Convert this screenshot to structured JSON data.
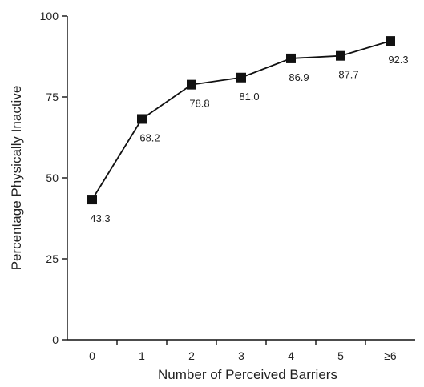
{
  "chart_data": {
    "type": "line",
    "categories": [
      "0",
      "1",
      "2",
      "3",
      "4",
      "5",
      "≥6"
    ],
    "series": [
      {
        "values": [
          43.3,
          68.2,
          78.8,
          81.0,
          86.9,
          87.7,
          92.3
        ],
        "value_labels": [
          "43.3",
          "68.2",
          "78.8",
          "81.0",
          "86.9",
          "87.7",
          "92.3"
        ]
      }
    ],
    "xlabel": "Number of Perceived Barriers",
    "ylabel": "Percentage Physically Inactive",
    "ylim": [
      0,
      100
    ],
    "yticks": [
      0,
      25,
      50,
      75,
      100
    ],
    "grid": false,
    "legend": "none",
    "marker": "square",
    "colors": {
      "line": "#111111",
      "marker": "#111111",
      "text": "#222222"
    }
  }
}
